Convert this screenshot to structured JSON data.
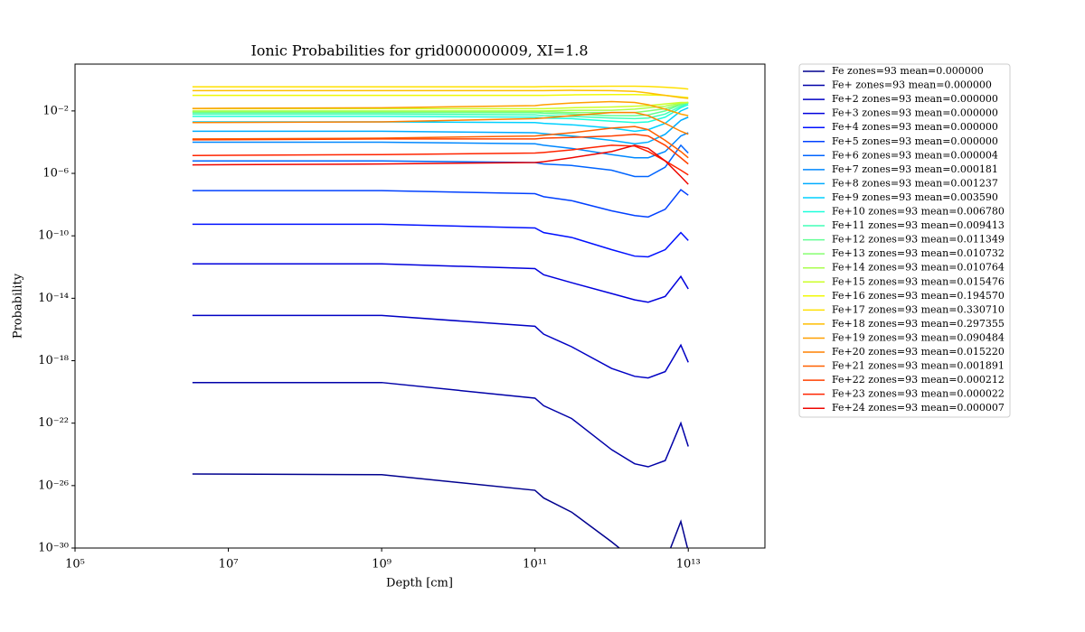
{
  "chart_data": {
    "type": "line",
    "title": "Ionic Probabilities for grid000000009, XI=1.8",
    "x_label": "Depth [cm]",
    "y_label": "Probability",
    "x_scale": "log",
    "y_scale": "log",
    "legend": "outside-right",
    "xlim": [
      100000,
      100000000000000
    ],
    "ylim": [
      1e-30,
      10
    ],
    "xticks": [
      {
        "value": 100000,
        "label": "10⁵"
      },
      {
        "value": 10000000,
        "label": "10⁷"
      },
      {
        "value": 1000000000,
        "label": "10⁹"
      },
      {
        "value": 100000000000,
        "label": "10¹¹"
      },
      {
        "value": 10000000000000,
        "label": "10¹³"
      }
    ],
    "yticks": [
      {
        "value": 1e-30,
        "label": "10⁻³⁰"
      },
      {
        "value": 1e-26,
        "label": "10⁻²⁶"
      },
      {
        "value": 1e-22,
        "label": "10⁻²²"
      },
      {
        "value": 1e-18,
        "label": "10⁻¹⁸"
      },
      {
        "value": 1e-14,
        "label": "10⁻¹⁴"
      },
      {
        "value": 1e-10,
        "label": "10⁻¹⁰"
      },
      {
        "value": 1e-06,
        "label": "10⁻⁶"
      },
      {
        "value": 0.01,
        "label": "10⁻²"
      }
    ],
    "x": [
      3400000,
      1000000000,
      100000000000,
      130000000000,
      300000000000,
      1000000000000,
      2000000000000,
      3000000000000,
      5000000000000,
      8000000000000,
      10000000000000
    ],
    "series": [
      {
        "name": "Fe zones=93 mean=0.000000",
        "color": "#00008f",
        "values": [
          5.5e-26,
          5e-26,
          5e-27,
          1.6e-27,
          2e-28,
          2.5e-30,
          1.6e-31,
          1e-31,
          1.3e-31,
          5e-29,
          6.3e-31
        ]
      },
      {
        "name": "Fe+ zones=93 mean=0.000000",
        "color": "#0000a8",
        "values": [
          4e-20,
          4e-20,
          4e-21,
          1.3e-21,
          2e-22,
          2e-24,
          2.5e-25,
          1.6e-25,
          4e-25,
          1e-22,
          3.2e-24
        ]
      },
      {
        "name": "Fe+2 zones=93 mean=0.000000",
        "color": "#0000c4",
        "values": [
          7.9e-16,
          7.9e-16,
          1.6e-16,
          5e-17,
          7.9e-18,
          3.2e-19,
          1e-19,
          7.9e-20,
          2e-19,
          1e-17,
          7.9e-19
        ]
      },
      {
        "name": "Fe+3 zones=93 mean=0.000000",
        "color": "#0000dd",
        "values": [
          1.6e-12,
          1.6e-12,
          7.9e-13,
          3.2e-13,
          1e-13,
          2e-14,
          7.9e-15,
          5.6e-15,
          1.3e-14,
          2.5e-13,
          4e-14
        ]
      },
      {
        "name": "Fe+4 zones=93 mean=0.000000",
        "color": "#0010ff",
        "values": [
          5.5e-10,
          5.5e-10,
          3.2e-10,
          1.6e-10,
          7.9e-11,
          1.3e-11,
          5e-12,
          4.5e-12,
          1.3e-11,
          1.6e-10,
          5e-11
        ]
      },
      {
        "name": "Fe+5 zones=93 mean=0.000000",
        "color": "#0040ff",
        "values": [
          7.9e-08,
          7.9e-08,
          5e-08,
          3.2e-08,
          1.8e-08,
          4e-09,
          2e-09,
          1.6e-09,
          5e-09,
          8.9e-08,
          4e-08
        ]
      },
      {
        "name": "Fe+6 zones=93 mean=0.000004",
        "color": "#0064ff",
        "values": [
          6.3e-06,
          6.3e-06,
          5e-06,
          4e-06,
          3.2e-06,
          1.6e-06,
          6.3e-07,
          6.3e-07,
          2.5e-06,
          6.3e-05,
          2e-05
        ]
      },
      {
        "name": "Fe+7 zones=93 mean=0.000181",
        "color": "#0088ff",
        "values": [
          0.0001,
          0.0001,
          7.9e-05,
          6.3e-05,
          4e-05,
          1.6e-05,
          1e-05,
          1e-05,
          2.5e-05,
          0.00025,
          0.0004
        ]
      },
      {
        "name": "Fe+8 zones=93 mean=0.001237",
        "color": "#00acff",
        "values": [
          0.0005,
          0.0005,
          0.0004,
          0.00035,
          0.00025,
          0.00013,
          7.9e-05,
          0.0001,
          0.00032,
          0.0025,
          0.004
        ]
      },
      {
        "name": "Fe+9 zones=93 mean=0.003590",
        "color": "#00d0ff",
        "values": [
          0.002,
          0.002,
          0.0018,
          0.0016,
          0.0013,
          0.00079,
          0.0005,
          0.00063,
          0.0016,
          0.01,
          0.016
        ]
      },
      {
        "name": "Fe+10 zones=93 mean=0.006780",
        "color": "#1cffdb",
        "values": [
          0.0045,
          0.0045,
          0.004,
          0.0035,
          0.0032,
          0.0022,
          0.0018,
          0.002,
          0.004,
          0.016,
          0.025
        ]
      },
      {
        "name": "Fe+11 zones=93 mean=0.009413",
        "color": "#40ffb7",
        "values": [
          0.0063,
          0.0063,
          0.0056,
          0.005,
          0.0045,
          0.0035,
          0.0032,
          0.0035,
          0.0063,
          0.02,
          0.032
        ]
      },
      {
        "name": "Fe+12 zones=93 mean=0.011349",
        "color": "#63ff94",
        "values": [
          0.0079,
          0.0079,
          0.0076,
          0.0071,
          0.0063,
          0.005,
          0.005,
          0.0056,
          0.01,
          0.025,
          0.035
        ]
      },
      {
        "name": "Fe+13 zones=93 mean=0.010732",
        "color": "#86ff70",
        "values": [
          0.0089,
          0.0089,
          0.0089,
          0.0089,
          0.0079,
          0.0079,
          0.0079,
          0.01,
          0.014,
          0.028,
          0.035
        ]
      },
      {
        "name": "Fe+14 zones=93 mean=0.010764",
        "color": "#aaff4d",
        "values": [
          0.01,
          0.01,
          0.01,
          0.01,
          0.011,
          0.011,
          0.013,
          0.016,
          0.02,
          0.032,
          0.035
        ]
      },
      {
        "name": "Fe+15 zones=93 mean=0.015476",
        "color": "#cdff2a",
        "values": [
          0.014,
          0.014,
          0.014,
          0.014,
          0.016,
          0.018,
          0.02,
          0.022,
          0.028,
          0.035,
          0.035
        ]
      },
      {
        "name": "Fe+16 zones=93 mean=0.194570",
        "color": "#f0f906",
        "values": [
          0.1,
          0.1,
          0.1,
          0.1,
          0.107,
          0.112,
          0.112,
          0.107,
          0.1,
          0.079,
          0.071
        ]
      },
      {
        "name": "Fe+17 zones=93 mean=0.330710",
        "color": "#ffe000",
        "values": [
          0.355,
          0.355,
          0.355,
          0.363,
          0.372,
          0.38,
          0.38,
          0.372,
          0.331,
          0.282,
          0.251
        ]
      },
      {
        "name": "Fe+18 zones=93 mean=0.297355",
        "color": "#ffbe00",
        "values": [
          0.2,
          0.2,
          0.2,
          0.2,
          0.209,
          0.2,
          0.178,
          0.141,
          0.1,
          0.071,
          0.063
        ]
      },
      {
        "name": "Fe+19 zones=93 mean=0.090484",
        "color": "#ff9f00",
        "values": [
          0.0145,
          0.016,
          0.022,
          0.025,
          0.032,
          0.04,
          0.035,
          0.025,
          0.013,
          0.0063,
          0.005
        ]
      },
      {
        "name": "Fe+20 zones=93 mean=0.015220",
        "color": "#ff8000",
        "values": [
          0.0018,
          0.002,
          0.0032,
          0.0035,
          0.005,
          0.0079,
          0.0079,
          0.005,
          0.0016,
          0.0005,
          0.00032
        ]
      },
      {
        "name": "Fe+21 zones=93 mean=0.001891",
        "color": "#ff6000",
        "values": [
          0.00016,
          0.00018,
          0.00025,
          0.00028,
          0.0004,
          0.00079,
          0.001,
          0.00063,
          0.00013,
          2.5e-05,
          1e-05
        ]
      },
      {
        "name": "Fe+22 zones=93 mean=0.000212",
        "color": "#ff4100",
        "values": [
          0.00014,
          0.00016,
          0.00016,
          0.00018,
          0.0002,
          0.00025,
          0.00032,
          0.00025,
          6.3e-05,
          1e-05,
          4e-06
        ]
      },
      {
        "name": "Fe+23 zones=93 mean=0.000022",
        "color": "#ff2400",
        "values": [
          1.4e-05,
          1.6e-05,
          2e-05,
          2.2e-05,
          3.2e-05,
          6.3e-05,
          5.6e-05,
          2.5e-05,
          6.3e-06,
          1.6e-06,
          7.9e-07
        ]
      },
      {
        "name": "Fe+24 zones=93 mean=0.000007",
        "color": "#ee0600",
        "values": [
          3.5e-06,
          4e-06,
          5e-06,
          5.6e-06,
          1e-05,
          2.5e-05,
          6.3e-05,
          4e-05,
          6.3e-06,
          6.3e-07,
          2e-07
        ]
      }
    ]
  }
}
